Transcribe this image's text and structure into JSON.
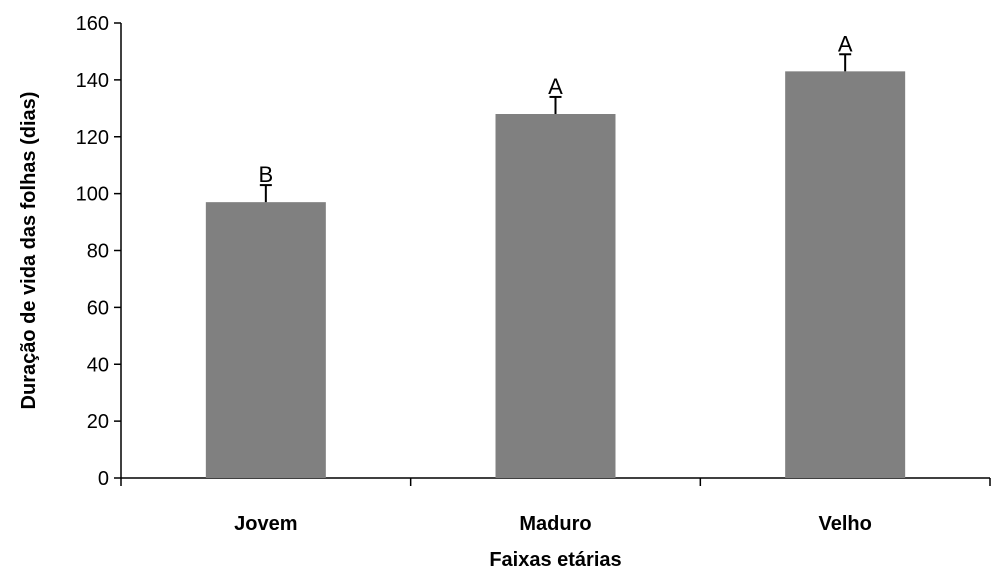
{
  "chart_data": {
    "type": "bar",
    "title": "",
    "xlabel": "Faixas etárias",
    "ylabel": "Duração de vida das folhas (dias)",
    "categories": [
      "Jovem",
      "Maduro",
      "Velho"
    ],
    "values": [
      97,
      128,
      143
    ],
    "errors": [
      6,
      6,
      6
    ],
    "significance_labels": [
      "B",
      "A",
      "A"
    ],
    "ylim": [
      0,
      160
    ],
    "yticks": [
      0,
      20,
      40,
      60,
      80,
      100,
      120,
      140,
      160
    ],
    "grid": false,
    "legend": "none",
    "bar_color": "#808080"
  }
}
